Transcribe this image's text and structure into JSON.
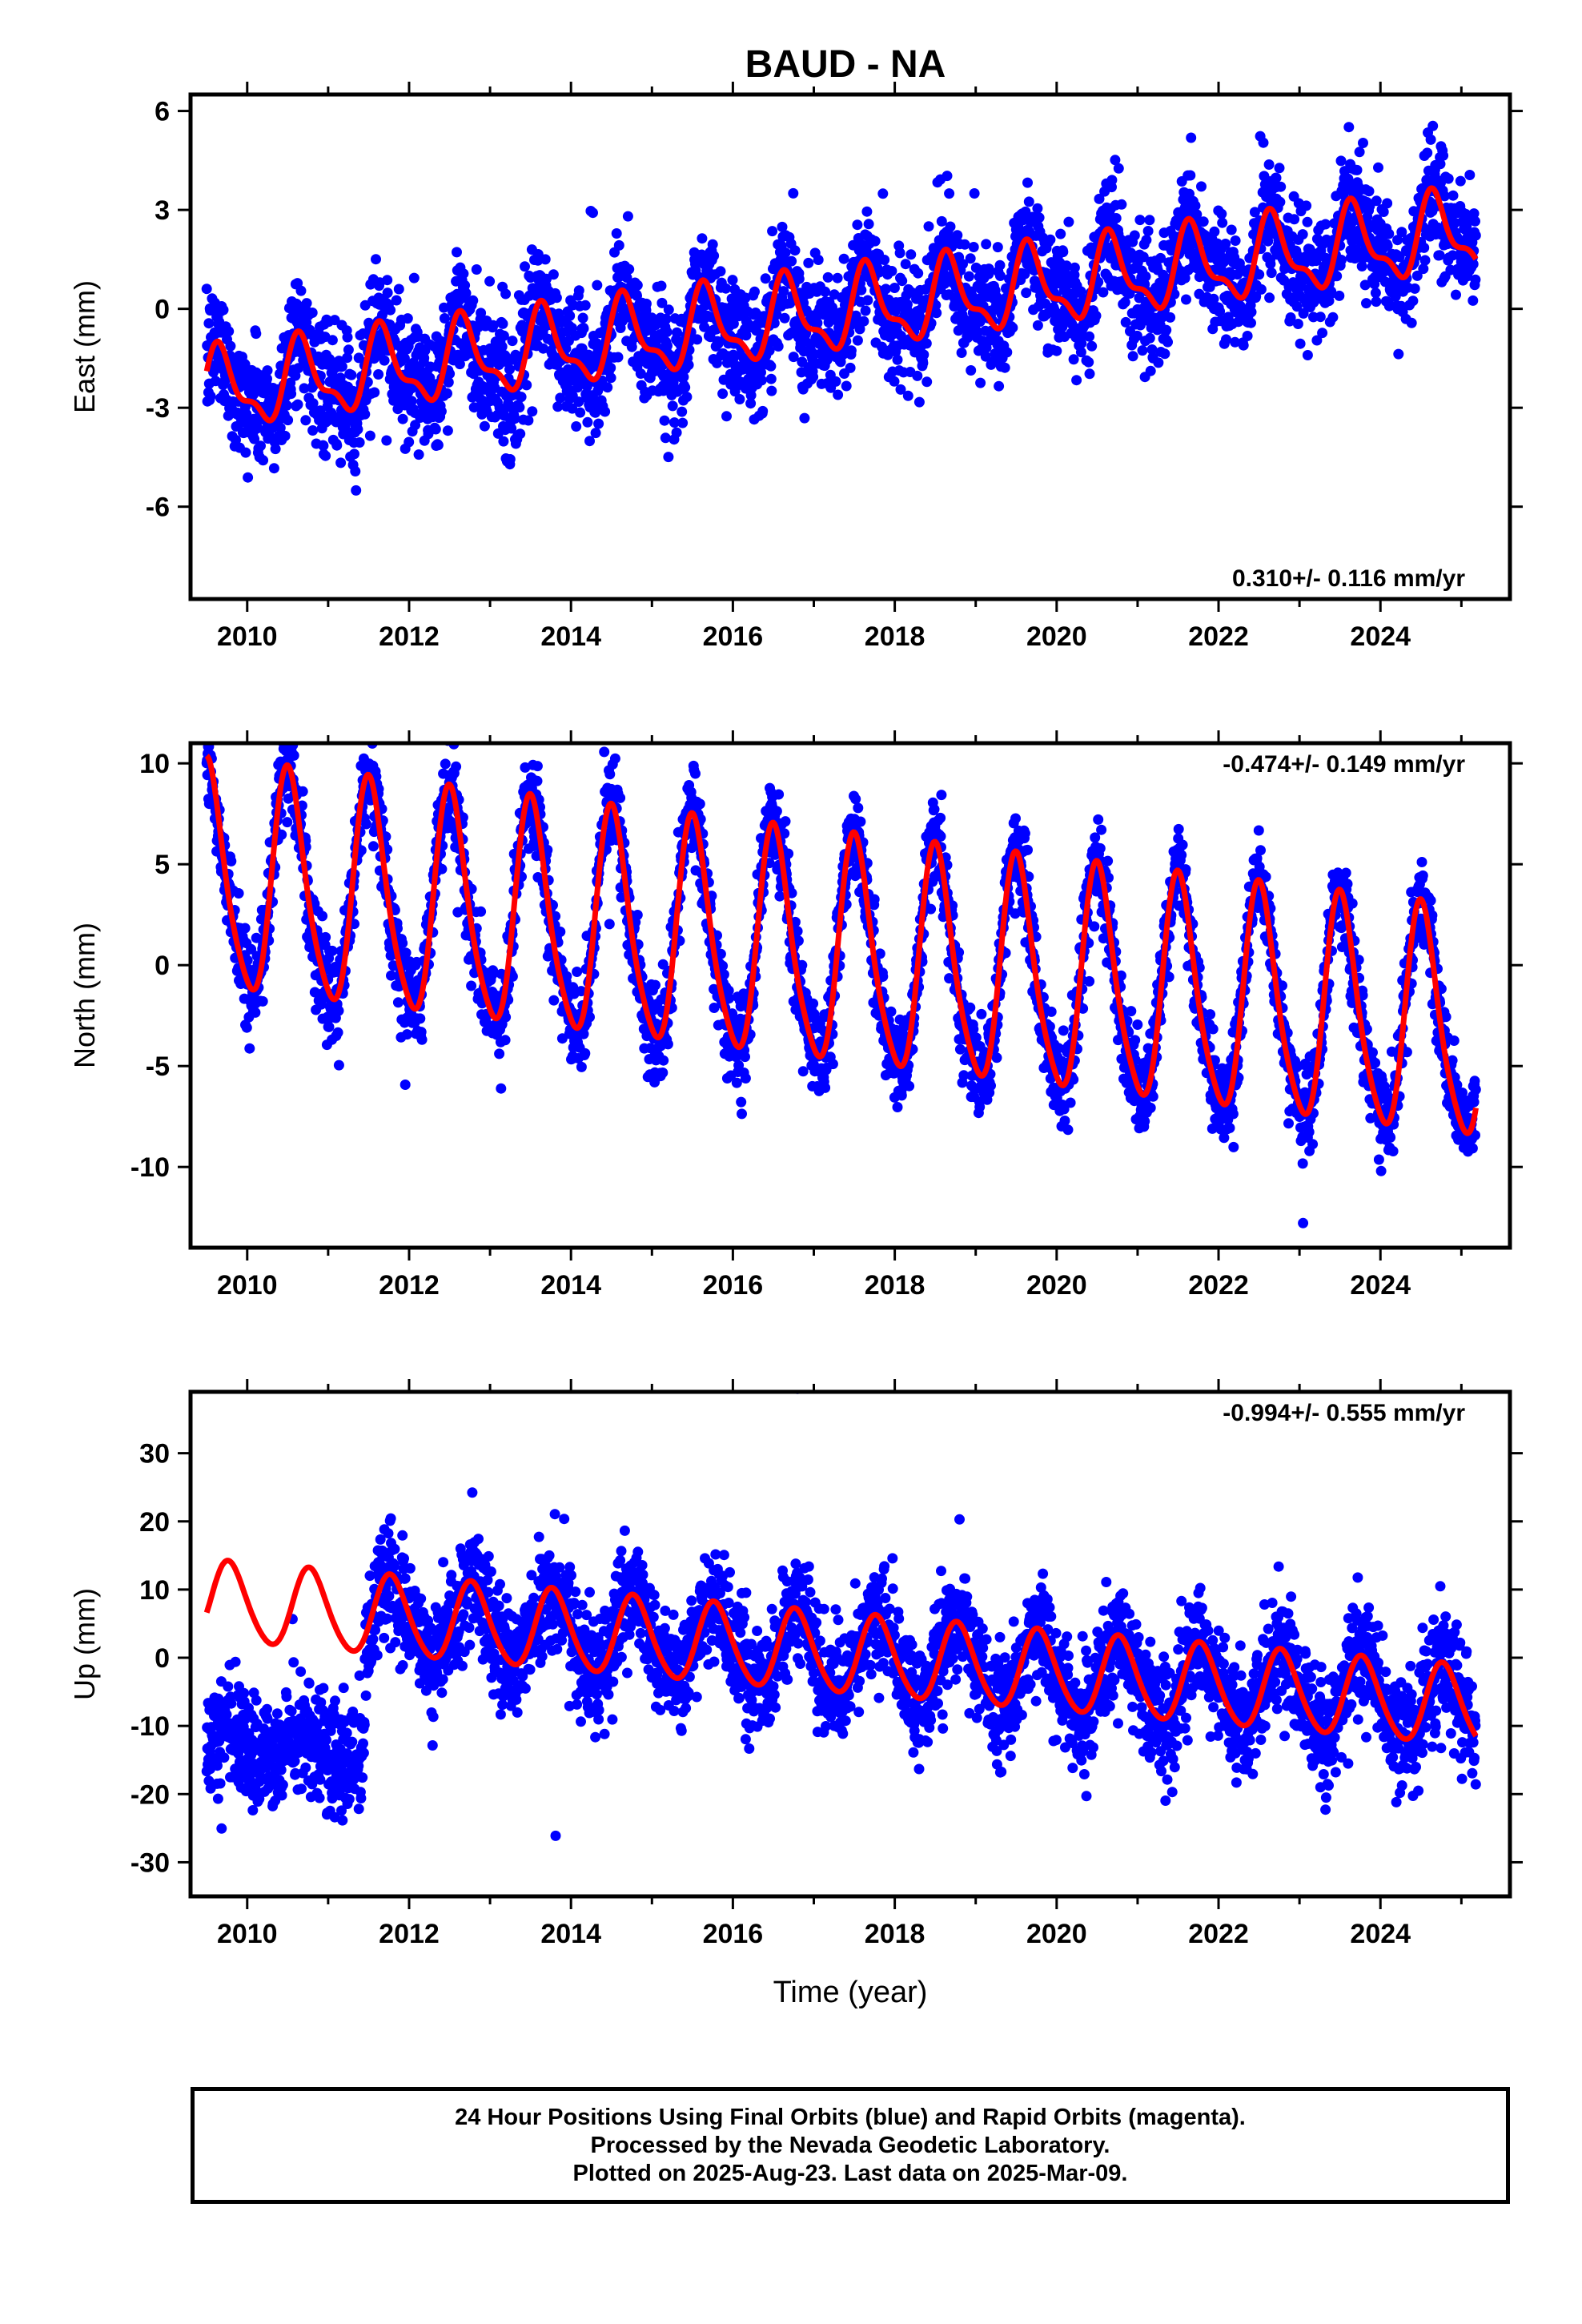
{
  "title": "BAUD - NA",
  "xlabel": "Time (year)",
  "colors": {
    "points": "#0000ff",
    "fit": "#ff0000",
    "frame": "#000000"
  },
  "chart_data": [
    {
      "type": "scatter",
      "name": "east",
      "ylabel": "East (mm)",
      "rate": "0.310+/- 0.116 mm/yr",
      "rate_position": "bottom-right",
      "xlim": [
        2009.3,
        2025.6
      ],
      "ylim": [
        -8.8,
        6.5
      ],
      "yticks": [
        -6,
        -3,
        0,
        3,
        6
      ],
      "xticks": [
        2010,
        2012,
        2014,
        2016,
        2018,
        2020,
        2022,
        2024
      ],
      "data_start": 2009.5,
      "data_end": 2025.18,
      "fit": {
        "intercept_at_2017": -0.2,
        "trend_mm_per_yr": 0.31,
        "annual_amplitude": 1.1,
        "annual_peak_fraction": 0.67,
        "semiannual_amplitude": 0.45,
        "residual_sd": 0.9
      },
      "series": [
        {
          "name": "",
          "role": "24h final-orbit positions (blue)"
        },
        {
          "name": "",
          "role": "model fit (red)"
        }
      ]
    },
    {
      "type": "scatter",
      "name": "north",
      "ylabel": "North (mm)",
      "rate": "-0.474+/- 0.149 mm/yr",
      "rate_position": "top-right",
      "xlim": [
        2009.3,
        2025.6
      ],
      "ylim": [
        -14,
        11
      ],
      "yticks": [
        -10,
        -5,
        0,
        5,
        10
      ],
      "xticks": [
        2010,
        2012,
        2014,
        2016,
        2018,
        2020,
        2022,
        2024
      ],
      "data_start": 2009.5,
      "data_end": 2025.18,
      "fit": {
        "intercept_at_2017": 0.6,
        "trend_mm_per_yr": -0.474,
        "annual_amplitude": 5.5,
        "annual_peak_fraction": 0.52,
        "semiannual_amplitude": 0.9,
        "residual_sd": 1.1
      },
      "series": [
        {
          "name": "",
          "role": "24h final-orbit positions (blue)"
        },
        {
          "name": "",
          "role": "model fit (red)"
        }
      ]
    },
    {
      "type": "scatter",
      "name": "up",
      "ylabel": "Up (mm)",
      "rate": "-0.994+/- 0.555 mm/yr",
      "rate_position": "top-right",
      "xlim": [
        2009.3,
        2025.6
      ],
      "ylim": [
        -35,
        39
      ],
      "yticks": [
        -30,
        -20,
        -10,
        0,
        10,
        20,
        30
      ],
      "xticks": [
        2010,
        2012,
        2014,
        2016,
        2018,
        2020,
        2022,
        2024
      ],
      "data_start": 2009.5,
      "data_end": 2025.18,
      "offset": {
        "epoch": 2011.45,
        "before_offset_mm": -13
      },
      "fit": {
        "intercept_at_2017": 0.8,
        "trend_mm_per_yr": -0.994,
        "annual_amplitude": 5.8,
        "annual_peak_fraction": 0.78,
        "semiannual_amplitude": 0.6,
        "residual_sd": 4.2
      },
      "series": [
        {
          "name": "",
          "role": "24h final-orbit positions (blue)"
        },
        {
          "name": "",
          "role": "model fit (red)"
        }
      ]
    }
  ],
  "footer": {
    "line1": "24 Hour Positions Using Final Orbits (blue) and Rapid Orbits (magenta).",
    "line2": "Processed by the Nevada Geodetic Laboratory.",
    "line3": "Plotted on 2025-Aug-23. Last data on 2025-Mar-09."
  }
}
